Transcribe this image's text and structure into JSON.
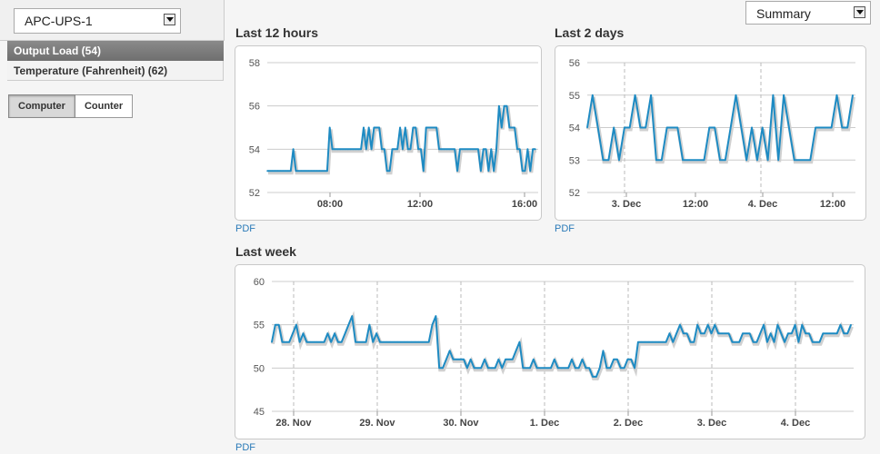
{
  "device_select": {
    "value": "APC-UPS-1"
  },
  "counters": [
    {
      "label": "Output Load (54)",
      "active": true
    },
    {
      "label": "Temperature (Fahrenheit) (62)",
      "active": false
    }
  ],
  "view_toggle": {
    "computer_label": "Computer",
    "counter_label": "Counter",
    "selected": "Computer"
  },
  "summary_select": {
    "value": "Summary"
  },
  "pdf_label": "PDF",
  "colors": {
    "line": "#1e8bc3",
    "active_tab": "#7a7a7a",
    "link": "#2a7ab8"
  },
  "chart_data": [
    {
      "type": "line",
      "title": "Last 12 hours",
      "ylim": [
        52,
        58
      ],
      "yticks": [
        52,
        54,
        56,
        58
      ],
      "xticks": [
        "08:00",
        "12:00",
        "16:00"
      ],
      "grid": "horizontal",
      "series": [
        {
          "values": [
            53,
            53,
            53,
            53,
            53,
            53,
            53,
            53,
            53,
            53,
            54,
            53,
            53,
            53,
            53,
            53,
            53,
            53,
            53,
            53,
            53,
            53,
            53,
            53,
            55,
            54,
            54,
            54,
            54,
            54,
            54,
            54,
            54,
            54,
            54,
            54,
            54,
            55,
            54,
            55,
            54,
            55,
            55,
            55,
            54,
            54,
            53,
            53,
            54,
            54,
            54,
            55,
            54,
            55,
            54,
            54,
            55,
            55,
            54,
            54,
            53,
            55,
            55,
            55,
            55,
            55,
            54,
            54,
            54,
            54,
            54,
            54,
            54,
            53,
            54,
            54,
            54,
            54,
            54,
            54,
            54,
            54,
            53,
            54,
            54,
            53,
            54,
            53,
            54,
            56,
            55,
            56,
            56,
            55,
            55,
            55,
            54,
            54,
            53,
            53,
            54,
            53,
            54,
            54
          ]
        }
      ]
    },
    {
      "type": "line",
      "title": "Last 2 days",
      "ylim": [
        52,
        56
      ],
      "yticks": [
        52,
        53,
        54,
        55,
        56
      ],
      "xticks": [
        "3. Dec",
        "12:00",
        "4. Dec",
        "12:00"
      ],
      "grid": "horizontal",
      "series": [
        {
          "values": [
            54,
            55,
            54,
            53,
            53,
            54,
            53,
            54,
            54,
            55,
            54,
            54,
            55,
            53,
            53,
            54,
            54,
            54,
            53,
            53,
            53,
            53,
            53,
            54,
            54,
            53,
            53,
            54,
            55,
            54,
            53,
            54,
            53,
            54,
            53,
            55,
            53,
            55,
            54,
            53,
            53,
            53,
            53,
            54,
            54,
            54,
            54,
            55,
            54,
            54,
            55
          ]
        }
      ]
    },
    {
      "type": "line",
      "title": "Last week",
      "ylim": [
        45,
        60
      ],
      "yticks": [
        45,
        50,
        55,
        60
      ],
      "xticks": [
        "28. Nov",
        "29. Nov",
        "30. Nov",
        "1. Dec",
        "2. Dec",
        "3. Dec",
        "4. Dec"
      ],
      "grid": "horizontal",
      "series": [
        {
          "values": [
            53,
            55,
            55,
            53,
            53,
            53,
            54,
            55,
            53,
            54,
            53,
            53,
            53,
            53,
            53,
            53,
            54,
            53,
            54,
            53,
            53,
            54,
            55,
            56,
            53,
            53,
            53,
            53,
            55,
            53,
            54,
            53,
            53,
            53,
            53,
            53,
            53,
            53,
            53,
            53,
            53,
            53,
            53,
            53,
            53,
            53,
            55,
            56,
            50,
            50,
            51,
            52,
            51,
            51,
            51,
            51,
            50,
            51,
            50,
            50,
            50,
            51,
            50,
            50,
            50,
            51,
            50,
            51,
            51,
            51,
            52,
            53,
            50,
            50,
            50,
            51,
            50,
            50,
            50,
            50,
            50,
            51,
            50,
            50,
            50,
            50,
            51,
            50,
            50,
            51,
            50,
            50,
            49,
            49,
            50,
            52,
            50,
            50,
            51,
            51,
            50,
            50,
            51,
            51,
            50,
            53,
            53,
            53,
            53,
            53,
            53,
            53,
            53,
            53,
            54,
            53,
            54,
            55,
            54,
            54,
            53,
            53,
            55,
            54,
            54,
            55,
            54,
            55,
            54,
            54,
            54,
            54,
            53,
            53,
            53,
            54,
            54,
            54,
            53,
            53,
            54,
            55,
            53,
            54,
            53,
            55,
            54,
            53,
            54,
            54,
            55,
            53,
            55,
            54,
            54,
            53,
            53,
            53,
            54,
            54,
            54,
            54,
            54,
            55,
            54,
            54,
            55
          ]
        }
      ]
    }
  ]
}
